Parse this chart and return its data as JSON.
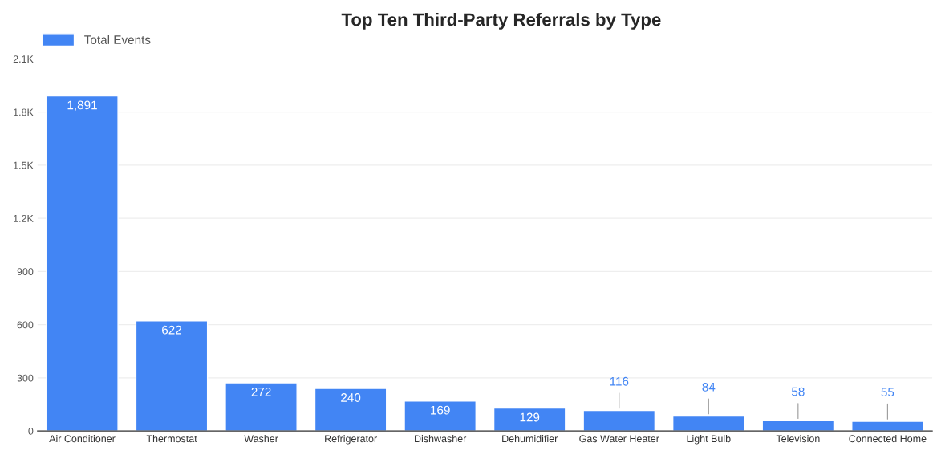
{
  "chart_data": {
    "type": "bar",
    "title": "Top Ten Third-Party Referrals by Type",
    "categories": [
      "Air Conditioner",
      "Thermostat",
      "Washer",
      "Refrigerator",
      "Dishwasher",
      "Dehumidifier",
      "Gas Water Heater",
      "Light Bulb",
      "Television",
      "Connected Home"
    ],
    "series": [
      {
        "name": "Total Events",
        "color": "#4285f4",
        "values": [
          1891,
          622,
          272,
          240,
          169,
          129,
          116,
          84,
          58,
          55
        ],
        "value_labels": [
          "1,891",
          "622",
          "272",
          "240",
          "169",
          "129",
          "116",
          "84",
          "58",
          "55"
        ]
      }
    ],
    "ylim": [
      0,
      2100
    ],
    "yticks": [
      0,
      300,
      600,
      900,
      {
        "value": 1200,
        "label": "1.2K"
      },
      {
        "value": 1500,
        "label": "1.5K"
      },
      {
        "value": 1800,
        "label": "1.8K"
      },
      {
        "value": 2100,
        "label": "2.1K"
      }
    ],
    "grid": "y",
    "legend": "top left"
  }
}
